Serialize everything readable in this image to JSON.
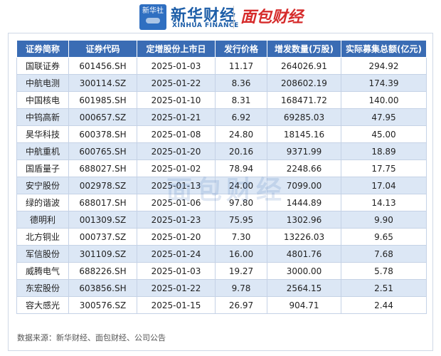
{
  "header": {
    "xinhua_badge": "新华社",
    "xinhua_name": "新华财经",
    "xinhua_en": "XINHUA FINANCE",
    "mianbao_logo": "面包财经"
  },
  "watermark": "面包财经",
  "table": {
    "columns": [
      "证券简称",
      "证券代码",
      "定增股份上市日",
      "发行价格",
      "增发数量(万股)",
      "实际募集总额(亿元)"
    ],
    "rows": [
      [
        "国联证券",
        "601456.SH",
        "2025-01-03",
        "11.17",
        "264026.91",
        "294.92"
      ],
      [
        "中航电测",
        "300114.SZ",
        "2025-01-22",
        "8.36",
        "208602.19",
        "174.39"
      ],
      [
        "中国核电",
        "601985.SH",
        "2025-01-10",
        "8.31",
        "168471.72",
        "140.00"
      ],
      [
        "中钨高新",
        "000657.SZ",
        "2025-01-21",
        "6.92",
        "69285.03",
        "47.95"
      ],
      [
        "昊华科技",
        "600378.SH",
        "2025-01-08",
        "24.80",
        "18145.16",
        "45.00"
      ],
      [
        "中航重机",
        "600765.SH",
        "2025-01-20",
        "20.16",
        "9371.99",
        "18.89"
      ],
      [
        "国盾量子",
        "688027.SH",
        "2025-01-02",
        "78.94",
        "2248.66",
        "17.75"
      ],
      [
        "安宁股份",
        "002978.SZ",
        "2025-01-13",
        "24.00",
        "7099.00",
        "17.04"
      ],
      [
        "绿的谐波",
        "688017.SH",
        "2025-01-06",
        "97.80",
        "1444.89",
        "14.13"
      ],
      [
        "德明利",
        "001309.SZ",
        "2025-01-23",
        "75.95",
        "1302.96",
        "9.90"
      ],
      [
        "北方铜业",
        "000737.SZ",
        "2025-01-20",
        "7.30",
        "13226.03",
        "9.65"
      ],
      [
        "军信股份",
        "301109.SZ",
        "2025-01-24",
        "16.00",
        "4801.76",
        "7.68"
      ],
      [
        "威腾电气",
        "688226.SH",
        "2025-01-03",
        "19.27",
        "3000.00",
        "5.78"
      ],
      [
        "东宏股份",
        "603856.SH",
        "2025-01-22",
        "9.78",
        "2564.15",
        "2.51"
      ],
      [
        "容大感光",
        "300576.SZ",
        "2025-01-15",
        "26.97",
        "904.71",
        "2.44"
      ]
    ]
  },
  "footer": {
    "source": "数据来源：新华财经、面包财经、公司公告"
  }
}
